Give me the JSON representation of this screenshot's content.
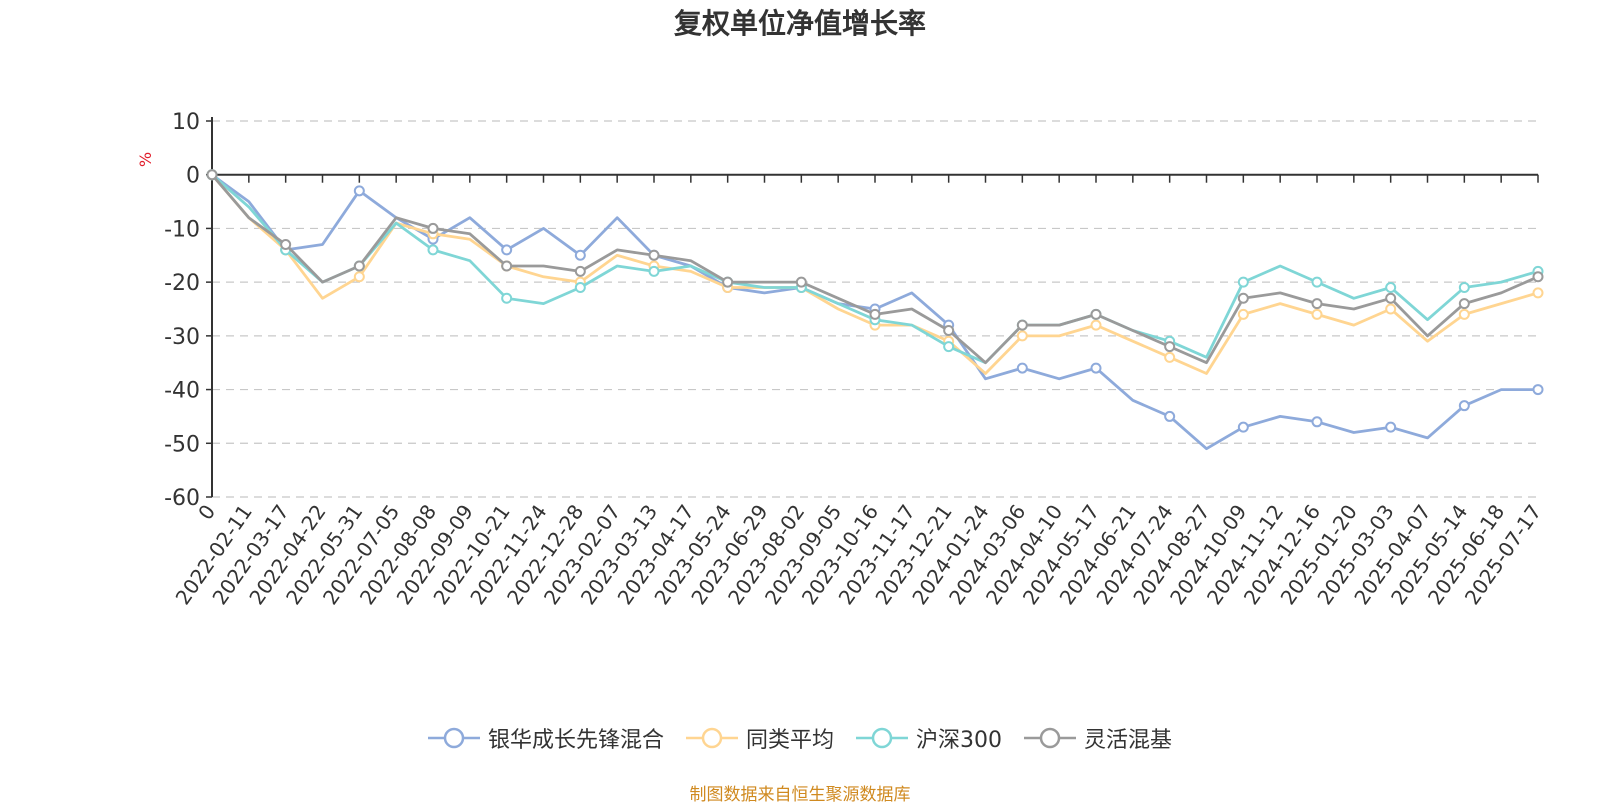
{
  "title": "复权单位净值增长率",
  "unit": "%",
  "source": "制图数据来自恒生聚源数据库",
  "chart_data": {
    "type": "line",
    "title": "复权单位净值增长率",
    "ylabel": "%",
    "ylim": [
      -60,
      10
    ],
    "yticks": [
      10,
      0,
      -10,
      -20,
      -30,
      -40,
      -50,
      -60
    ],
    "grid": true,
    "legend_position": "bottom",
    "categories": [
      "0",
      "2022-02-11",
      "2022-03-17",
      "2022-04-22",
      "2022-05-31",
      "2022-07-05",
      "2022-08-08",
      "2022-09-09",
      "2022-10-21",
      "2022-11-24",
      "2022-12-28",
      "2023-02-07",
      "2023-03-13",
      "2023-04-17",
      "2023-05-24",
      "2023-06-29",
      "2023-08-02",
      "2023-09-05",
      "2023-10-16",
      "2023-11-17",
      "2023-12-21",
      "2024-01-24",
      "2024-03-06",
      "2024-04-10",
      "2024-05-17",
      "2024-06-21",
      "2024-07-24",
      "2024-08-27",
      "2024-10-09",
      "2024-11-12",
      "2024-12-16",
      "2025-01-20",
      "2025-03-03",
      "2025-04-07",
      "2025-05-14",
      "2025-06-18",
      "2025-07-17"
    ],
    "series": [
      {
        "name": "银华成长先锋混合",
        "color": "#8eaadb",
        "values": [
          0,
          -5,
          -14,
          -13,
          -3,
          -8,
          -12,
          -8,
          -14,
          -10,
          -15,
          -8,
          -15,
          -17,
          -21,
          -22,
          -21,
          -24,
          -25,
          -22,
          -28,
          -38,
          -36,
          -38,
          -36,
          -42,
          -45,
          -51,
          -47,
          -45,
          -46,
          -48,
          -47,
          -49,
          -43,
          -40,
          -40
        ]
      },
      {
        "name": "同类平均",
        "color": "#ffd591",
        "values": [
          0,
          -8,
          -14,
          -23,
          -19,
          -9,
          -11,
          -12,
          -17,
          -19,
          -20,
          -15,
          -17,
          -18,
          -21,
          -21,
          -21,
          -25,
          -28,
          -28,
          -31,
          -37,
          -30,
          -30,
          -28,
          -31,
          -34,
          -37,
          -26,
          -24,
          -26,
          -28,
          -25,
          -31,
          -26,
          -24,
          -22
        ]
      },
      {
        "name": "沪深300",
        "color": "#7fd6d6",
        "values": [
          0,
          -6,
          -14,
          -20,
          -17,
          -9,
          -14,
          -16,
          -23,
          -24,
          -21,
          -17,
          -18,
          -17,
          -20,
          -21,
          -21,
          -24,
          -27,
          -28,
          -32,
          -35,
          -28,
          -28,
          -26,
          -29,
          -31,
          -34,
          -20,
          -17,
          -20,
          -23,
          -21,
          -27,
          -21,
          -20,
          -18
        ]
      },
      {
        "name": "灵活混基",
        "color": "#9a9a9a",
        "values": [
          0,
          -8,
          -13,
          -20,
          -17,
          -8,
          -10,
          -11,
          -17,
          -17,
          -18,
          -14,
          -15,
          -16,
          -20,
          -20,
          -20,
          -23,
          -26,
          -25,
          -29,
          -35,
          -28,
          -28,
          -26,
          -29,
          -32,
          -35,
          -23,
          -22,
          -24,
          -25,
          -23,
          -30,
          -24,
          -22,
          -19
        ]
      }
    ]
  }
}
